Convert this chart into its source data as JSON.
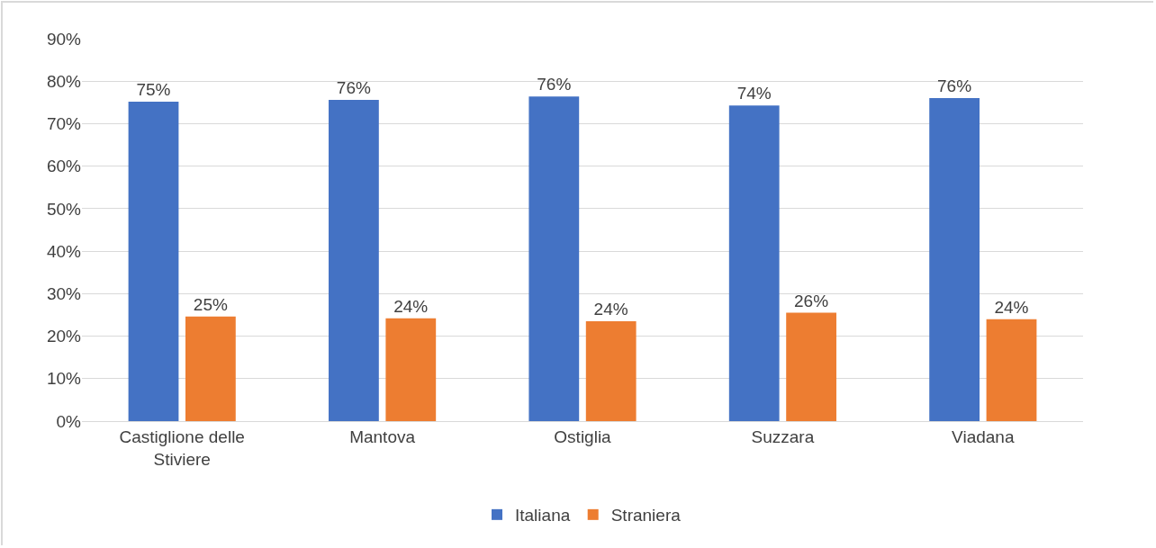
{
  "chart_data": {
    "type": "bar",
    "categories": [
      "Castiglione delle Stiviere",
      "Mantova",
      "Ostiglia",
      "Suzzara",
      "Viadana"
    ],
    "series": [
      {
        "name": "Italiana",
        "color": "#4472c4",
        "values": [
          75.2,
          75.6,
          76.4,
          74.3,
          76.0
        ],
        "value_labels": [
          "75%",
          "76%",
          "76%",
          "74%",
          "76%"
        ]
      },
      {
        "name": "Straniera",
        "color": "#ed7d31",
        "values": [
          24.6,
          24.2,
          23.5,
          25.5,
          24.0
        ],
        "value_labels": [
          "25%",
          "24%",
          "24%",
          "26%",
          "24%"
        ]
      }
    ],
    "ylim": [
      0,
      90
    ],
    "yticks": [
      {
        "value": 0,
        "label": "0%"
      },
      {
        "value": 10,
        "label": "10%"
      },
      {
        "value": 20,
        "label": "20%"
      },
      {
        "value": 30,
        "label": "30%"
      },
      {
        "value": 40,
        "label": "40%"
      },
      {
        "value": 50,
        "label": "50%"
      },
      {
        "value": 60,
        "label": "60%"
      },
      {
        "value": 70,
        "label": "70%"
      },
      {
        "value": 80,
        "label": "80%"
      },
      {
        "value": 90,
        "label": "90%"
      }
    ],
    "grid": "y",
    "legend": "bottom"
  }
}
